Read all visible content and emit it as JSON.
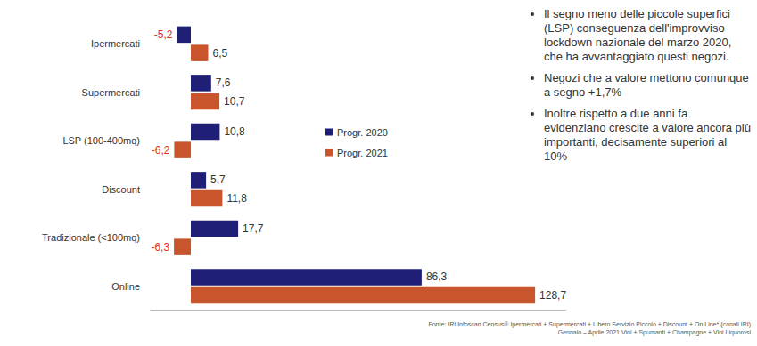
{
  "chart_data": {
    "type": "bar",
    "orientation": "horizontal",
    "categories": [
      "Ipermercati",
      "Supermercati",
      "LSP (100-400mq)",
      "Discount",
      "Tradizionale (<100mq)",
      "Online"
    ],
    "series": [
      {
        "name": "Progr. 2020",
        "color": "#1f1f78",
        "values": [
          -5.2,
          7.6,
          10.8,
          5.7,
          17.7,
          86.3
        ],
        "value_labels": [
          "-5,2",
          "7,6",
          "10,8",
          "5,7",
          "17,7",
          "86,3"
        ]
      },
      {
        "name": "Progr. 2021",
        "color": "#c8552b",
        "values": [
          6.5,
          10.7,
          -6.2,
          11.8,
          -6.3,
          128.7
        ],
        "value_labels": [
          "6,5",
          "10,7",
          "-6,2",
          "11,8",
          "-6,3",
          "128,7"
        ]
      }
    ],
    "xlim": [
      -15,
      140
    ],
    "tick_labels": "y",
    "grid": false,
    "legend": "right",
    "data_labels": true,
    "annotations": [
      "Il segno meno delle piccole superfici (LSP) conseguenza dell'improvviso lockdown nazionale del marzo 2020, che ha avvantaggiato questi negozi.",
      "Negozi che a valore mettono comunque a segno +1,7%",
      "Inoltre rispetto a due anni fa evidenziano crescite a valore ancora più importanti, decisamente superiori al 10%"
    ],
    "source": "Fonte: IRI Infoscan Census® Ipermercati + Supermercati + Libero Servizio Piccolo + Discount + On Line* (canali IRI) Gennaio – Aprile 2021 Vini + Spumanti + Champagne + Vini Liquorosi"
  }
}
